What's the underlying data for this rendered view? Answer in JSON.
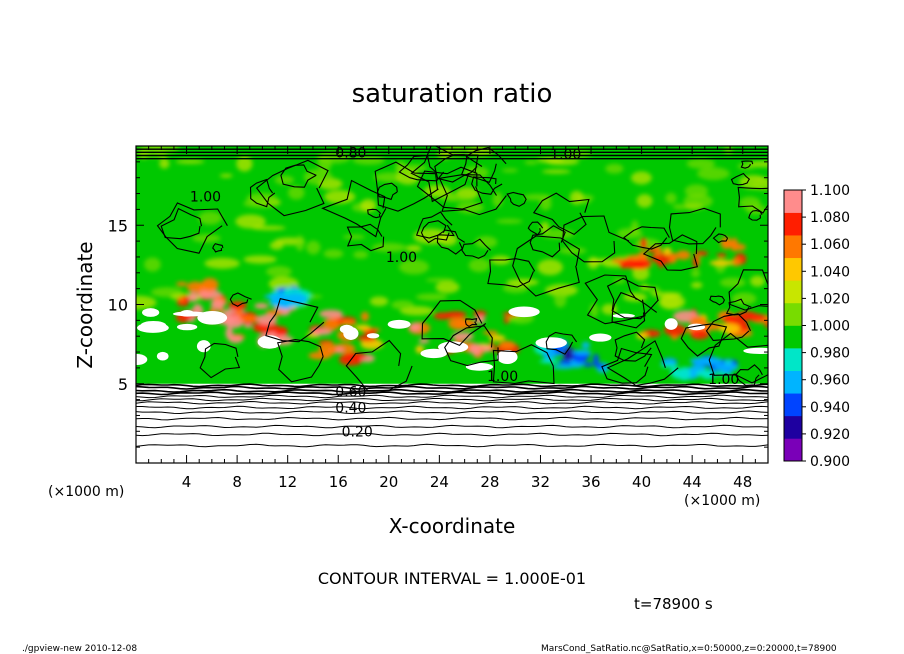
{
  "chart_data": {
    "type": "heatmap",
    "title": "saturation ratio",
    "xlabel": "X-coordinate",
    "ylabel": "Z-coordinate",
    "x_unit_label": "(×1000 m)",
    "y_unit_label": "(×1000 m)",
    "xlim": [
      0,
      50
    ],
    "ylim": [
      0,
      20
    ],
    "x_ticks": [
      4,
      8,
      12,
      16,
      20,
      24,
      28,
      32,
      36,
      40,
      44,
      48
    ],
    "y_ticks": [
      5,
      10,
      15
    ],
    "colorbar": {
      "min": 0.9,
      "max": 1.1,
      "labels": [
        "1.100",
        "1.080",
        "1.060",
        "1.040",
        "1.020",
        "1.000",
        "0.980",
        "0.960",
        "0.940",
        "0.920",
        "0.900"
      ],
      "colors": [
        "#7a00b8",
        "#1e00a0",
        "#0044ff",
        "#00b4ff",
        "#00e6c8",
        "#00c800",
        "#78dc00",
        "#c8e600",
        "#ffc800",
        "#ff7800",
        "#ff1e00",
        "#ff8c8c"
      ]
    },
    "contour_interval_text": "CONTOUR INTERVAL = 1.000E-01",
    "contour_labels": [
      "0.80",
      "1.00",
      "1.00",
      "1.00",
      "1.00",
      "1.00",
      "0.60",
      "0.40",
      "0.20"
    ],
    "background_value": 1.0,
    "lower_layer_top_km": 5.0,
    "features": [
      {
        "type": "supersat",
        "x": [
          3.5,
          7.0
        ],
        "z": [
          9.0,
          11.5
        ],
        "value": 1.06
      },
      {
        "type": "supersat",
        "x": [
          7.0,
          12.0
        ],
        "z": [
          7.5,
          10.0
        ],
        "value": 1.07
      },
      {
        "type": "supersat",
        "x": [
          14.0,
          19.0
        ],
        "z": [
          6.5,
          9.5
        ],
        "value": 1.05
      },
      {
        "type": "supersat",
        "x": [
          22.0,
          30.0
        ],
        "z": [
          7.0,
          9.5
        ],
        "value": 1.05
      },
      {
        "type": "supersat",
        "x": [
          38.0,
          48.0
        ],
        "z": [
          12.5,
          14.0
        ],
        "value": 1.04
      },
      {
        "type": "supersat",
        "x": [
          40.0,
          50.0
        ],
        "z": [
          8.0,
          9.5
        ],
        "value": 1.05
      },
      {
        "type": "subsat",
        "x": [
          32.0,
          37.0
        ],
        "z": [
          6.0,
          7.5
        ],
        "value": 0.95
      },
      {
        "type": "subsat",
        "x": [
          42.0,
          47.0
        ],
        "z": [
          5.5,
          6.5
        ],
        "value": 0.96
      },
      {
        "type": "subsat",
        "x": [
          11.0,
          13.0
        ],
        "z": [
          10.0,
          11.0
        ],
        "value": 0.96
      }
    ]
  },
  "annotations": {
    "time_label": "t=78900 s",
    "footer_left": "./gpview-new   2010-12-08",
    "footer_right": "MarsCond_SatRatio.nc@SatRatio,x=0:50000,z=0:20000,t=78900"
  }
}
